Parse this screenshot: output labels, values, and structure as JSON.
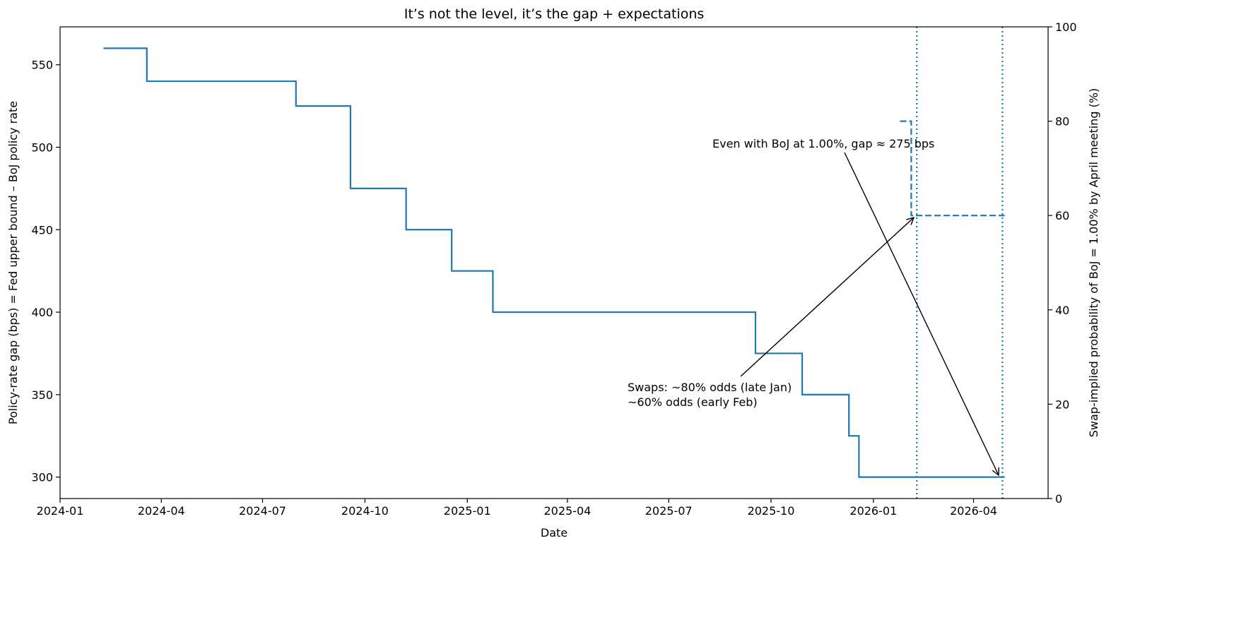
{
  "chart_data": {
    "type": "step",
    "title": "It’s not the level, it’s the gap + expectations",
    "xlabel": "Date",
    "ylabel": "Policy-rate gap (bps) = Fed upper bound – BoJ policy rate",
    "y2label": "Swap-implied probability of BoJ = 1.00% by April meeting (%)",
    "xlim": [
      "2024-01-01",
      "2026-06-07"
    ],
    "xticks": [
      {
        "value": "2024-01-01",
        "label": "2024-01"
      },
      {
        "value": "2024-04-01",
        "label": "2024-04"
      },
      {
        "value": "2024-07-01",
        "label": "2024-07"
      },
      {
        "value": "2024-10-01",
        "label": "2024-10"
      },
      {
        "value": "2025-01-01",
        "label": "2025-01"
      },
      {
        "value": "2025-04-01",
        "label": "2025-04"
      },
      {
        "value": "2025-07-01",
        "label": "2025-07"
      },
      {
        "value": "2025-10-01",
        "label": "2025-10"
      },
      {
        "value": "2026-01-01",
        "label": "2026-01"
      },
      {
        "value": "2026-04-01",
        "label": "2026-04"
      }
    ],
    "ylim": [
      287,
      573
    ],
    "yticks": [
      300,
      350,
      400,
      450,
      500,
      550
    ],
    "y2lim": [
      0,
      100
    ],
    "y2ticks": [
      0,
      20,
      40,
      60,
      80,
      100
    ],
    "series": [
      {
        "color": "#1f77b4",
        "linestyle": "solid",
        "x": [
          "2024-02-09",
          "2024-03-19",
          "2024-07-31",
          "2024-09-18",
          "2024-11-07",
          "2024-12-18",
          "2025-01-24",
          "2025-09-17",
          "2025-10-29",
          "2025-12-10",
          "2025-12-19",
          "2026-04-29"
        ],
        "values": [
          560,
          540,
          525,
          475,
          450,
          425,
          400,
          375,
          350,
          325,
          300,
          300
        ]
      },
      {
        "color": "#1f77b4",
        "linestyle": "dashed",
        "axis": "y2",
        "x": [
          "2026-01-25",
          "2026-02-04",
          "2026-04-29"
        ],
        "values": [
          80,
          60,
          60
        ]
      }
    ],
    "vlines": {
      "color": "#1f77b4",
      "linestyle": "dotted",
      "x": [
        "2026-02-09",
        "2026-04-27"
      ]
    },
    "annotations": [
      {
        "lines": [
          "Even with BoJ at 1.00%, gap ≈ 275 bps"
        ]
      },
      {
        "lines": [
          "Swaps: ~80% odds (late Jan)",
          "~60% odds (early Feb)"
        ]
      }
    ]
  }
}
